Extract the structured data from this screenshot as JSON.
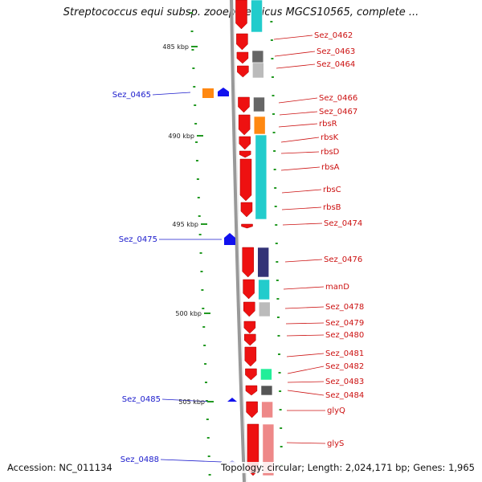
{
  "title": "Streptococcus equi subsp. zooepidemicus MGCS10565, complete ...",
  "footer": {
    "accession": "Accession: NC_011134",
    "summary": "Topology: circular; Length: 2,024,171 bp; Genes: 1,965"
  },
  "colors": {
    "forward_gene": "#ee1111",
    "label_forward": "#cc1111",
    "label_reverse": "#1a1acc",
    "tick": "#229922",
    "backbone": "#999999"
  },
  "kbp_marks": [
    "485 kbp",
    "490 kbp",
    "495 kbp",
    "500 kbp",
    "505 kbp"
  ],
  "forward_labels": [
    "Sez_0462",
    "Sez_0463",
    "Sez_0464",
    "Sez_0466",
    "Sez_0467",
    "rbsR",
    "rbsK",
    "rbsD",
    "rbsA",
    "rbsC",
    "rbsB",
    "Sez_0474",
    "Sez_0476",
    "manD",
    "Sez_0478",
    "Sez_0479",
    "Sez_0480",
    "Sez_0481",
    "Sez_0482",
    "Sez_0483",
    "Sez_0484",
    "glyQ",
    "glyS"
  ],
  "reverse_labels": [
    "Sez_0465",
    "Sez_0475",
    "Sez_0485",
    "Sez_0488"
  ]
}
